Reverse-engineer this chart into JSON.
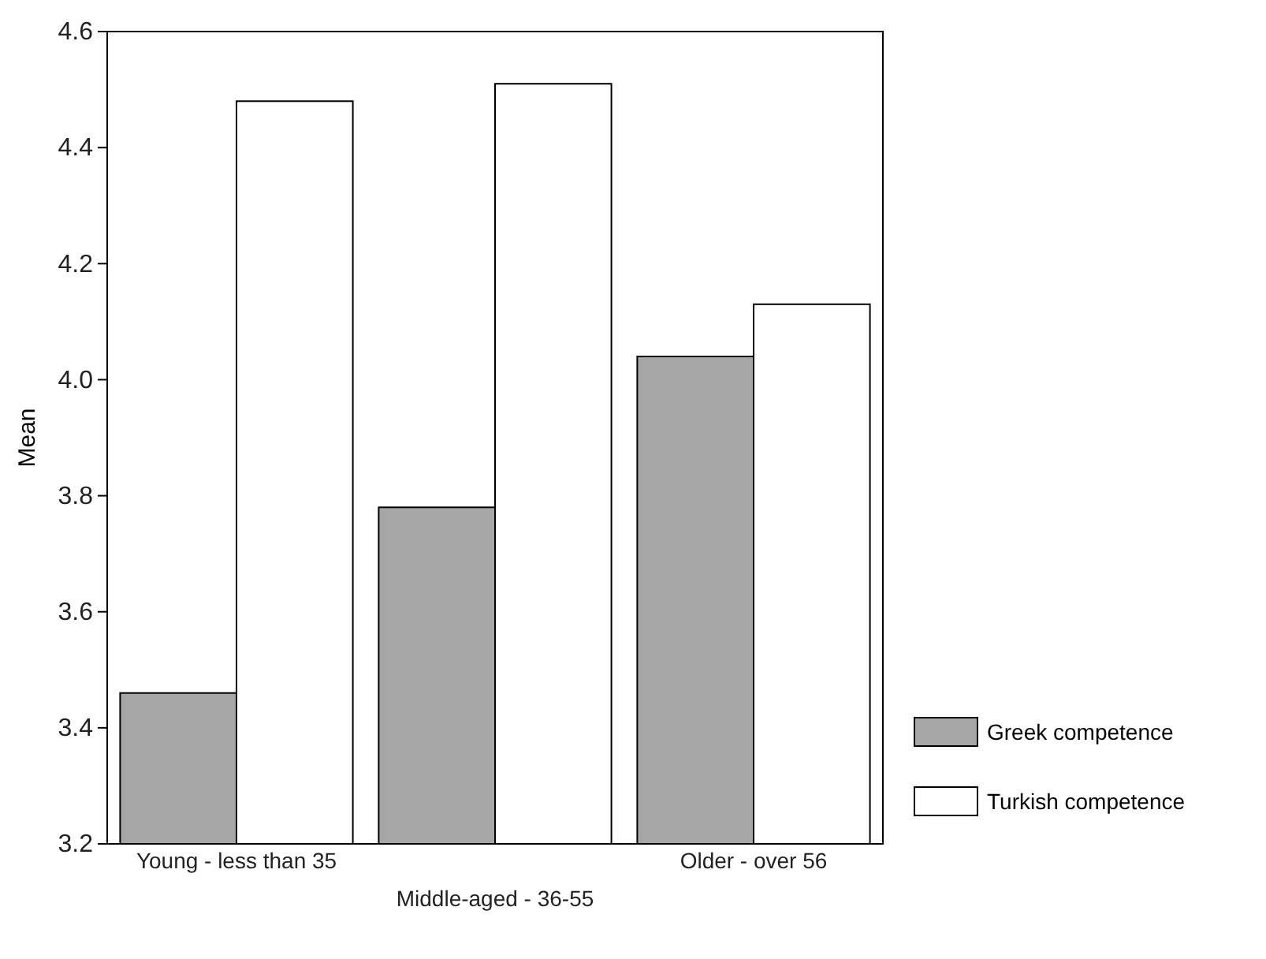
{
  "chart_data": {
    "type": "bar",
    "ylabel": "Mean",
    "categories": [
      "Young - less than 35",
      "Middle-aged - 36-55",
      "Older - over 56"
    ],
    "series": [
      {
        "name": "Greek competence",
        "color": "#a6a6a6",
        "values": [
          3.46,
          3.78,
          4.04
        ]
      },
      {
        "name": "Turkish competence",
        "color": "#ffffff",
        "values": [
          4.48,
          4.51,
          4.13
        ]
      }
    ],
    "ylim": [
      3.2,
      4.6
    ],
    "yticks": [
      {
        "value": 3.2,
        "label": "3.2"
      },
      {
        "value": 3.4,
        "label": "3.4"
      },
      {
        "value": 3.6,
        "label": "3.6"
      },
      {
        "value": 3.8,
        "label": "3.8"
      },
      {
        "value": 4.0,
        "label": "4.0"
      },
      {
        "value": 4.2,
        "label": "4.2"
      },
      {
        "value": 4.4,
        "label": "4.4"
      },
      {
        "value": 4.6,
        "label": "4.6"
      }
    ],
    "grid": false,
    "legend": "bottom right"
  }
}
